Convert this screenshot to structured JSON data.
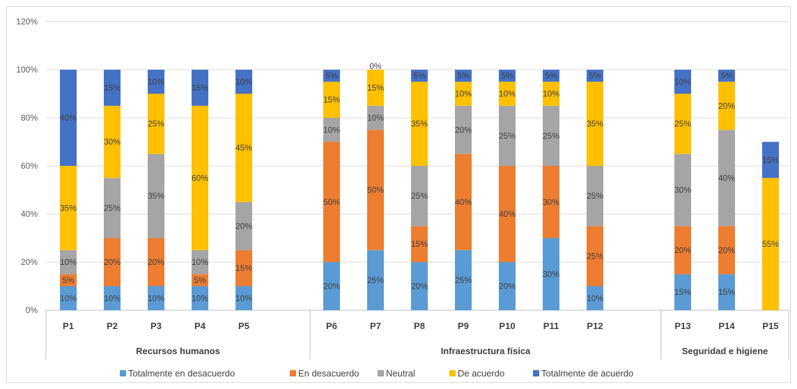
{
  "chart_data": {
    "type": "bar",
    "stacked": true,
    "categories": [
      "P1",
      "P2",
      "P3",
      "P4",
      "P5",
      "P6",
      "P7",
      "P8",
      "P9",
      "P10",
      "P11",
      "P12",
      "P13",
      "P14",
      "P15"
    ],
    "groups": [
      {
        "label": "Recursos humanos",
        "categories": [
          "P1",
          "P2",
          "P3",
          "P4",
          "P5"
        ]
      },
      {
        "label": "Infraestructura física",
        "categories": [
          "P6",
          "P7",
          "P8",
          "P9",
          "P10",
          "P11",
          "P12"
        ]
      },
      {
        "label": "Seguridad e higiene",
        "categories": [
          "P13",
          "P14",
          "P15"
        ]
      }
    ],
    "series": [
      {
        "name": "Totalmente en desacuerdo",
        "color": "#5b9bd5",
        "values": [
          10,
          10,
          10,
          10,
          10,
          20,
          25,
          20,
          25,
          20,
          30,
          10,
          15,
          15,
          0
        ],
        "labels": [
          "10%",
          "10%",
          "10%",
          "10%",
          "10%",
          "20%",
          "25%",
          "20%",
          "25%",
          "20%",
          "30%",
          "10%",
          "15%",
          "15%",
          ""
        ]
      },
      {
        "name": "En desacuerdo",
        "color": "#ed7d31",
        "values": [
          5,
          20,
          20,
          5,
          15,
          50,
          50,
          15,
          40,
          40,
          30,
          25,
          20,
          20,
          0
        ],
        "labels": [
          "5%",
          "20%",
          "20%",
          "5%",
          "15%",
          "50%",
          "50%",
          "15%",
          "40%",
          "40%",
          "30%",
          "25%",
          "20%",
          "20%",
          ""
        ]
      },
      {
        "name": "Neutral",
        "color": "#a5a5a5",
        "values": [
          10,
          25,
          35,
          10,
          20,
          10,
          10,
          25,
          20,
          25,
          25,
          25,
          30,
          40,
          0
        ],
        "labels": [
          "10%",
          "25%",
          "35%",
          "10%",
          "20%",
          "10%",
          "10%",
          "25%",
          "20%",
          "25%",
          "25%",
          "25%",
          "30%",
          "40%",
          ""
        ]
      },
      {
        "name": "De acuerdo",
        "color": "#ffc000",
        "values": [
          35,
          30,
          25,
          60,
          45,
          15,
          15,
          35,
          10,
          10,
          10,
          35,
          25,
          20,
          55
        ],
        "labels": [
          "35%",
          "30%",
          "25%",
          "60%",
          "45%",
          "15%",
          "15%",
          "35%",
          "10%",
          "10%",
          "10%",
          "35%",
          "25%",
          "20%",
          "55%"
        ]
      },
      {
        "name": "Totalmente de acuerdo",
        "color": "#4472c4",
        "values": [
          40,
          15,
          10,
          15,
          10,
          5,
          0,
          5,
          5,
          5,
          5,
          5,
          10,
          5,
          15
        ],
        "labels": [
          "40%",
          "15%",
          "10%",
          "15%",
          "10%",
          "5%",
          "0%",
          "5%",
          "5%",
          "5%",
          "5%",
          "5%",
          "10%",
          "5%",
          "15%"
        ]
      }
    ],
    "yticks": [
      "0%",
      "20%",
      "40%",
      "60%",
      "80%",
      "100%",
      "120%"
    ],
    "ylim": [
      0,
      120
    ],
    "grid": true,
    "legend_position": "bottom"
  }
}
